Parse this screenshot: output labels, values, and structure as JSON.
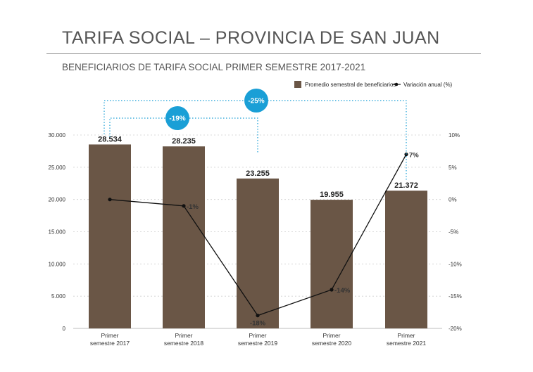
{
  "header": {
    "title": "TARIFA SOCIAL – PROVINCIA DE SAN JUAN",
    "subtitle": "BENEFICIARIOS DE TARIFA SOCIAL PRIMER SEMESTRE 2017-2021"
  },
  "colors": {
    "bar": "#6a5646",
    "line": "#111111",
    "accent": "#1a9fd6",
    "grid": "#cfcfcf"
  },
  "chart_data": {
    "type": "bar",
    "title": "BENEFICIARIOS DE TARIFA SOCIAL PRIMER SEMESTRE 2017-2021",
    "categories": [
      [
        "Primer",
        "semestre 2017"
      ],
      [
        "Primer",
        "semestre 2018"
      ],
      [
        "Primer",
        "semestre 2019"
      ],
      [
        "Primer",
        "semestre 2020"
      ],
      [
        "Primer",
        "semestre 2021"
      ]
    ],
    "series": [
      {
        "name": "Promedio semestral de beneficiarios",
        "type": "bar",
        "axis": "left",
        "values": [
          28534,
          28235,
          23255,
          19955,
          21372
        ],
        "labels": [
          "28.534",
          "28.235",
          "23.255",
          "19.955",
          "21.372"
        ]
      },
      {
        "name": "Variación anual (%)",
        "type": "line",
        "axis": "right",
        "values": [
          0,
          -1,
          -18,
          -14,
          7
        ],
        "labels": [
          "",
          "-1%",
          "-18%",
          "-14%",
          "7%"
        ]
      }
    ],
    "left_axis": {
      "ylim": [
        0,
        30000
      ],
      "ticks": [
        0,
        5000,
        10000,
        15000,
        20000,
        25000,
        30000
      ],
      "tick_labels": [
        "0",
        "5.000",
        "10.000",
        "15.000",
        "20.000",
        "25.000",
        "30.000"
      ]
    },
    "right_axis": {
      "ylim": [
        -20,
        10
      ],
      "ticks": [
        -20,
        -15,
        -10,
        -5,
        0,
        5,
        10
      ],
      "tick_labels": [
        "-20%",
        "-15%",
        "-10%",
        "-5%",
        "0%",
        "5%",
        "10%"
      ]
    },
    "grid": true,
    "legend_position": "top-right",
    "annotations": [
      {
        "from": 0,
        "to": 2,
        "label": "-19%"
      },
      {
        "from": 0,
        "to": 4,
        "label": "-25%"
      }
    ]
  }
}
